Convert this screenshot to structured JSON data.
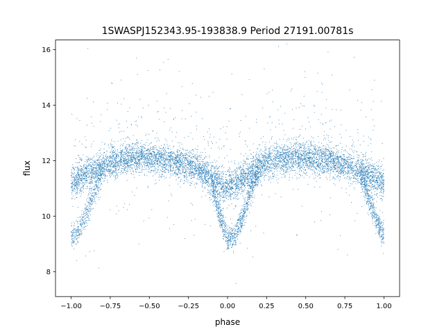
{
  "chart_data": {
    "type": "scatter",
    "title": "1SWASPJ152343.95-193838.9 Period 27191.00781s",
    "xlabel": "phase",
    "ylabel": "flux",
    "xlim": [
      -1.1,
      1.1
    ],
    "ylim": [
      7.1,
      16.35
    ],
    "xticks": [
      -1.0,
      -0.75,
      -0.5,
      -0.25,
      0.0,
      0.25,
      0.5,
      0.75,
      1.0
    ],
    "xtick_labels": [
      "−1.00",
      "−0.75",
      "−0.50",
      "−0.25",
      "0.00",
      "0.25",
      "0.50",
      "0.75",
      "1.00"
    ],
    "yticks": [
      8,
      10,
      12,
      14,
      16
    ],
    "ytick_labels": [
      "8",
      "10",
      "12",
      "14",
      "16"
    ],
    "grid": false,
    "marker_color": "#1f77b4",
    "x_range": [
      -1.0,
      1.0
    ],
    "series": [
      {
        "description": "upper light-curve branch (phase vs flux, smooth trend)",
        "x": [
          -1.0,
          -0.9,
          -0.75,
          -0.6,
          -0.5,
          -0.4,
          -0.25,
          -0.15,
          -0.08,
          -0.03,
          0.0,
          0.03,
          0.08,
          0.15,
          0.25,
          0.4,
          0.5,
          0.6,
          0.75,
          0.9,
          1.0
        ],
        "y": [
          11.2,
          11.5,
          11.9,
          12.1,
          12.1,
          12.05,
          11.85,
          11.55,
          11.3,
          11.1,
          11.1,
          11.1,
          11.3,
          11.6,
          11.95,
          12.1,
          12.1,
          12.05,
          11.85,
          11.5,
          11.2
        ]
      },
      {
        "description": "lower eclipse branch (phase vs flux, smooth trend)",
        "x": [
          -1.0,
          -0.95,
          -0.9,
          -0.85,
          -0.8,
          -0.1,
          -0.05,
          0.0,
          0.05,
          0.1,
          0.15,
          0.2,
          0.85,
          0.9,
          0.95,
          1.0
        ],
        "y": [
          9.2,
          9.5,
          10.1,
          10.9,
          11.6,
          11.2,
          10.0,
          9.2,
          9.3,
          10.0,
          10.9,
          11.6,
          11.5,
          10.7,
          9.9,
          9.3
        ]
      }
    ]
  }
}
